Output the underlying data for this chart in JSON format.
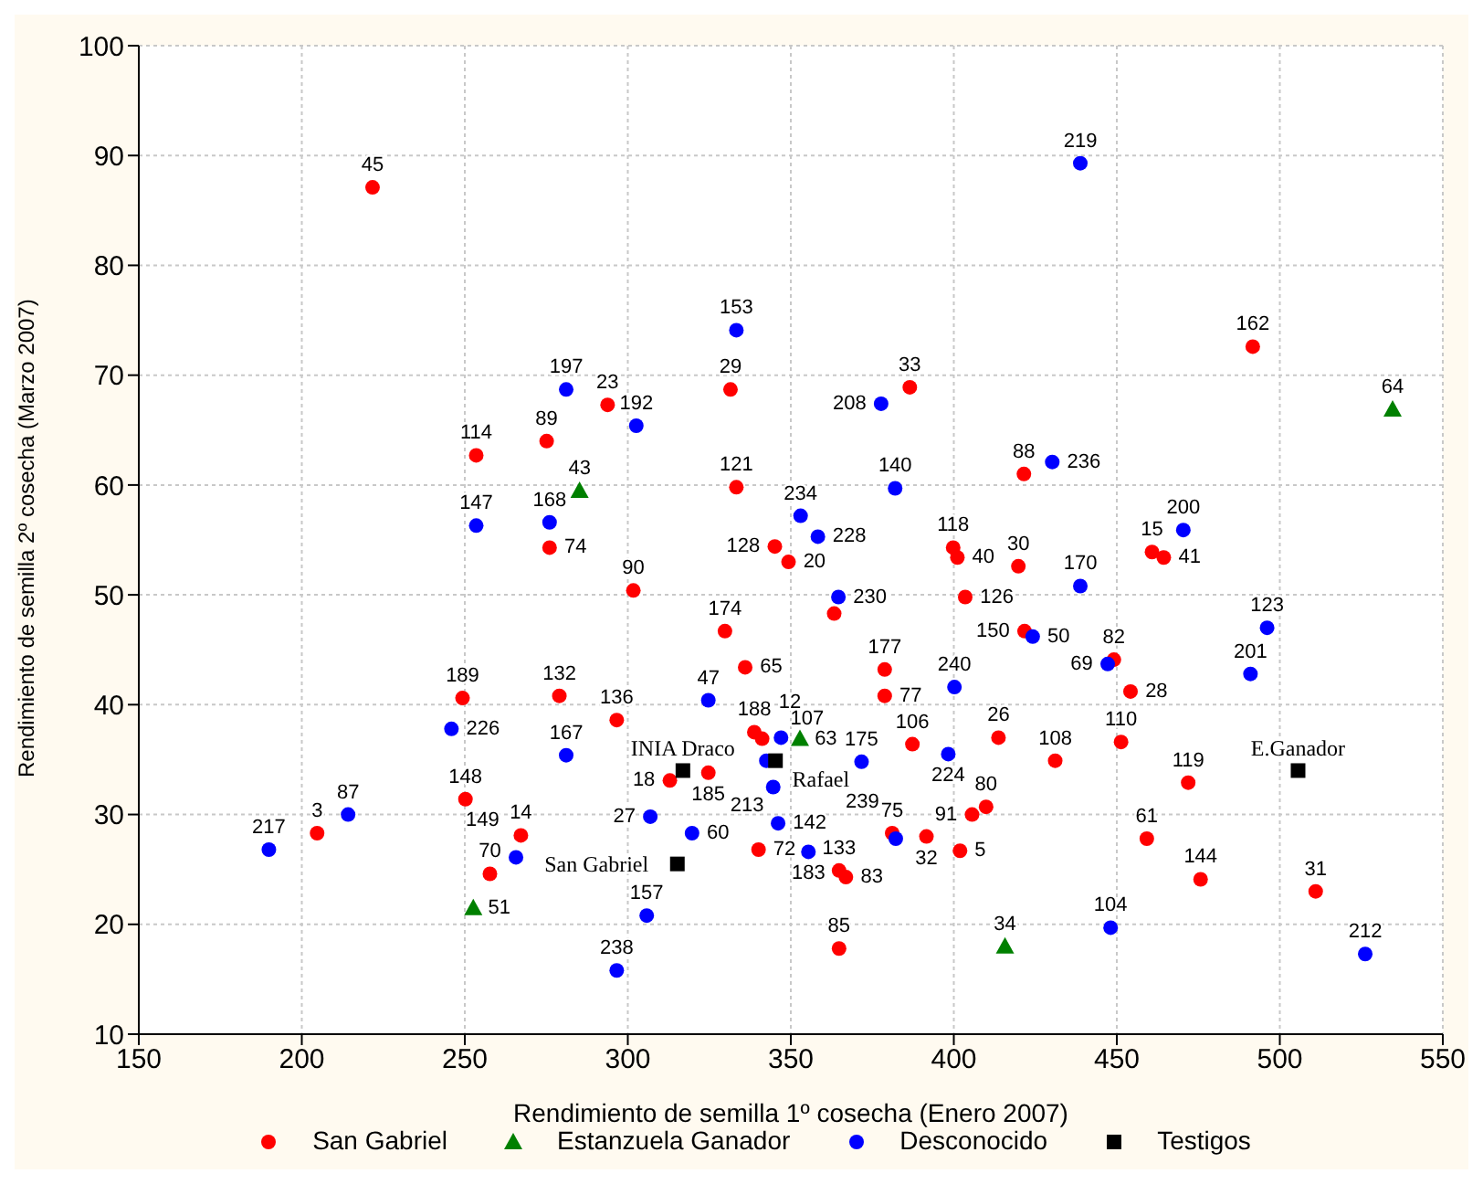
{
  "chart_data": {
    "type": "scatter",
    "xlabel": "Rendimiento de semilla 1º cosecha (Enero 2007)",
    "ylabel": "Rendimiento de semilla 2º cosecha (Marzo 2007)",
    "xlim": [
      150,
      550
    ],
    "xticks": [
      150,
      200,
      250,
      300,
      350,
      400,
      450,
      500,
      550
    ],
    "ylim": [
      10,
      100
    ],
    "yticks": [
      10,
      20,
      30,
      40,
      50,
      60,
      70,
      80,
      90,
      100
    ],
    "grid": true,
    "legend": "bottom",
    "series": [
      {
        "name": "San Gabriel",
        "color": "#ff0000",
        "marker": "circle",
        "x": [
          221.7,
          293.8,
          331.5,
          253.5,
          275.1,
          333.3,
          276,
          345.1,
          491.7,
          386.5,
          421.5,
          349.3,
          399.8,
          401.1,
          419.8,
          460.8,
          464.4,
          301.7,
          329.8,
          336,
          249.3,
          279,
          296.6,
          250.2,
          204.7,
          267.2,
          257.7,
          340.1,
          312.9,
          324.7,
          338.8,
          341.2,
          363.3,
          403.5,
          421.7,
          449.1,
          454.2,
          378.8,
          378.8,
          387.3,
          413.7,
          431.1,
          451.3,
          471.9,
          405.6,
          409.9,
          381.1,
          391.6,
          401.9,
          459.2,
          475.7,
          511,
          364.8,
          366.9,
          364.8
        ],
        "values": [
          87.1,
          67.3,
          68.7,
          62.7,
          64,
          59.8,
          54.3,
          54.4,
          72.6,
          68.9,
          61,
          53,
          54.3,
          53.4,
          52.6,
          53.9,
          53.4,
          50.4,
          46.7,
          43.4,
          40.6,
          40.8,
          38.6,
          31.4,
          28.3,
          28.1,
          24.6,
          26.8,
          33.1,
          33.8,
          37.5,
          36.9,
          48.3,
          49.8,
          46.7,
          44.1,
          41.2,
          43.2,
          40.8,
          36.4,
          37,
          34.9,
          36.6,
          32.9,
          30,
          30.7,
          28.3,
          28,
          26.7,
          27.8,
          24.1,
          23,
          24.9,
          24.3,
          17.8
        ]
      },
      {
        "name": "Estanzuela Ganador",
        "color": "#008000",
        "marker": "triangle",
        "x": [
          285.2,
          534.6,
          252.6,
          352.8,
          415.7
        ],
        "values": [
          59.5,
          66.9,
          21.5,
          36.9,
          18
        ]
      },
      {
        "name": "Desconocido",
        "color": "#0000ff",
        "marker": "circle",
        "x": [
          333.3,
          281.1,
          302.6,
          253.5,
          276,
          438.8,
          377.7,
          430.2,
          382,
          353,
          358.3,
          470.4,
          438.8,
          324.7,
          245.9,
          281.1,
          214.2,
          189.9,
          265.7,
          306.9,
          319.7,
          305.8,
          296.6,
          346.1,
          344.6,
          355.4,
          347,
          342.5,
          364.6,
          424.2,
          447.2,
          496.1,
          491,
          400.2,
          398.3,
          371.7,
          382.2,
          448.1,
          526.2
        ],
        "values": [
          74.1,
          68.7,
          65.4,
          56.3,
          56.6,
          89.3,
          67.4,
          62.1,
          59.7,
          57.2,
          55.3,
          55.9,
          50.8,
          40.4,
          37.8,
          35.4,
          30,
          26.8,
          26.1,
          29.8,
          28.3,
          20.8,
          15.8,
          29.2,
          32.5,
          26.6,
          37,
          34.9,
          49.8,
          46.2,
          43.7,
          47,
          42.8,
          41.6,
          35.5,
          34.8,
          27.8,
          19.7,
          17.3
        ]
      },
      {
        "name": "Testigos",
        "color": "#000000",
        "marker": "square",
        "x": [
          316.9,
          315.2,
          345.3,
          505.6
        ],
        "values": [
          34,
          25.5,
          34.9,
          34
        ]
      }
    ],
    "annotations": [
      {
        "text": "45",
        "x": 221.7,
        "y": 87.1
      },
      {
        "text": "23",
        "x": 293.8,
        "y": 67.3
      },
      {
        "text": "29",
        "x": 331.5,
        "y": 68.7
      },
      {
        "text": "114",
        "x": 253.5,
        "y": 62.7
      },
      {
        "text": "89",
        "x": 275.1,
        "y": 64
      },
      {
        "text": "121",
        "x": 333.3,
        "y": 59.8
      },
      {
        "text": "74",
        "x": 276,
        "y": 54.3
      },
      {
        "text": "128",
        "x": 345.1,
        "y": 54.4
      },
      {
        "text": "162",
        "x": 491.7,
        "y": 72.6
      },
      {
        "text": "33",
        "x": 386.5,
        "y": 68.9
      },
      {
        "text": "88",
        "x": 421.5,
        "y": 61
      },
      {
        "text": "20",
        "x": 349.3,
        "y": 53
      },
      {
        "text": "118",
        "x": 399.8,
        "y": 54.3
      },
      {
        "text": "40",
        "x": 401.1,
        "y": 53.4
      },
      {
        "text": "30",
        "x": 419.8,
        "y": 52.6
      },
      {
        "text": "15",
        "x": 460.8,
        "y": 53.9
      },
      {
        "text": "41",
        "x": 464.4,
        "y": 53.4
      },
      {
        "text": "90",
        "x": 301.7,
        "y": 50.4
      },
      {
        "text": "174",
        "x": 329.8,
        "y": 46.7
      },
      {
        "text": "65",
        "x": 336,
        "y": 43.4
      },
      {
        "text": "189",
        "x": 249.3,
        "y": 40.6
      },
      {
        "text": "132",
        "x": 279,
        "y": 40.8
      },
      {
        "text": "136",
        "x": 296.6,
        "y": 38.6
      },
      {
        "text": "148",
        "x": 250.2,
        "y": 31.4
      },
      {
        "text": "3",
        "x": 204.7,
        "y": 28.3
      },
      {
        "text": "14",
        "x": 267.2,
        "y": 28.1
      },
      {
        "text": "70",
        "x": 257.7,
        "y": 24.6
      },
      {
        "text": "72",
        "x": 340.1,
        "y": 26.8
      },
      {
        "text": "18",
        "x": 312.9,
        "y": 33.1
      },
      {
        "text": "185",
        "x": 324.7,
        "y": 33.8
      },
      {
        "text": "188",
        "x": 338.8,
        "y": 37.5
      },
      {
        "text": "12",
        "x": 341.2,
        "y": 36.9
      },
      {
        "text": "126",
        "x": 403.5,
        "y": 49.8
      },
      {
        "text": "150",
        "x": 421.7,
        "y": 46.7
      },
      {
        "text": "82",
        "x": 449.1,
        "y": 44.1
      },
      {
        "text": "28",
        "x": 454.2,
        "y": 41.2
      },
      {
        "text": "177",
        "x": 378.8,
        "y": 43.2
      },
      {
        "text": "77",
        "x": 378.8,
        "y": 40.8
      },
      {
        "text": "106",
        "x": 387.3,
        "y": 36.4
      },
      {
        "text": "26",
        "x": 413.7,
        "y": 37
      },
      {
        "text": "108",
        "x": 431.1,
        "y": 34.9
      },
      {
        "text": "110",
        "x": 451.3,
        "y": 36.6
      },
      {
        "text": "119",
        "x": 471.9,
        "y": 32.9
      },
      {
        "text": "91",
        "x": 405.6,
        "y": 30
      },
      {
        "text": "80",
        "x": 409.9,
        "y": 30.7
      },
      {
        "text": "75",
        "x": 381.1,
        "y": 28.3
      },
      {
        "text": "32",
        "x": 391.6,
        "y": 28
      },
      {
        "text": "5",
        "x": 401.9,
        "y": 26.7
      },
      {
        "text": "61",
        "x": 459.2,
        "y": 27.8
      },
      {
        "text": "144",
        "x": 475.7,
        "y": 24.1
      },
      {
        "text": "31",
        "x": 511,
        "y": 23
      },
      {
        "text": "133",
        "x": 364.8,
        "y": 24.9
      },
      {
        "text": "83",
        "x": 366.9,
        "y": 24.3
      },
      {
        "text": "85",
        "x": 364.8,
        "y": 17.8
      },
      {
        "text": "43",
        "x": 285.2,
        "y": 59.5
      },
      {
        "text": "64",
        "x": 534.6,
        "y": 66.9
      },
      {
        "text": "51",
        "x": 252.6,
        "y": 21.5
      },
      {
        "text": "63",
        "x": 352.8,
        "y": 36.9
      },
      {
        "text": "34",
        "x": 415.7,
        "y": 18
      },
      {
        "text": "153",
        "x": 333.3,
        "y": 74.1
      },
      {
        "text": "197",
        "x": 281.1,
        "y": 68.7
      },
      {
        "text": "192",
        "x": 302.6,
        "y": 65.4
      },
      {
        "text": "147",
        "x": 253.5,
        "y": 56.3
      },
      {
        "text": "168",
        "x": 276,
        "y": 56.6
      },
      {
        "text": "219",
        "x": 438.8,
        "y": 89.3
      },
      {
        "text": "208",
        "x": 377.7,
        "y": 67.4
      },
      {
        "text": "236",
        "x": 430.2,
        "y": 62.1
      },
      {
        "text": "140",
        "x": 382,
        "y": 59.7
      },
      {
        "text": "234",
        "x": 353,
        "y": 57.2
      },
      {
        "text": "228",
        "x": 358.3,
        "y": 55.3
      },
      {
        "text": "200",
        "x": 470.4,
        "y": 55.9
      },
      {
        "text": "170",
        "x": 438.8,
        "y": 50.8
      },
      {
        "text": "47",
        "x": 324.7,
        "y": 40.4
      },
      {
        "text": "226",
        "x": 245.9,
        "y": 37.8
      },
      {
        "text": "167",
        "x": 281.1,
        "y": 35.4
      },
      {
        "text": "87",
        "x": 214.2,
        "y": 30
      },
      {
        "text": "217",
        "x": 189.9,
        "y": 26.8
      },
      {
        "text": "149",
        "x": 265.7,
        "y": 26.1
      },
      {
        "text": "27",
        "x": 306.9,
        "y": 29.8
      },
      {
        "text": "60",
        "x": 319.7,
        "y": 28.3
      },
      {
        "text": "157",
        "x": 305.8,
        "y": 20.8
      },
      {
        "text": "238",
        "x": 296.6,
        "y": 15.8
      },
      {
        "text": "142",
        "x": 346.1,
        "y": 29.2
      },
      {
        "text": "213",
        "x": 344.6,
        "y": 32.5
      },
      {
        "text": "183",
        "x": 355.4,
        "y": 26.6
      },
      {
        "text": "107",
        "x": 347,
        "y": 37
      },
      {
        "text": "230",
        "x": 364.6,
        "y": 49.8
      },
      {
        "text": "50",
        "x": 424.2,
        "y": 46.2
      },
      {
        "text": "69",
        "x": 447.2,
        "y": 43.7
      },
      {
        "text": "123",
        "x": 496.1,
        "y": 47
      },
      {
        "text": "201",
        "x": 491,
        "y": 42.8
      },
      {
        "text": "240",
        "x": 400.2,
        "y": 41.6
      },
      {
        "text": "224",
        "x": 398.3,
        "y": 35.5
      },
      {
        "text": "175",
        "x": 371.7,
        "y": 34.8
      },
      {
        "text": "239",
        "x": 382.2,
        "y": 27.8
      },
      {
        "text": "104",
        "x": 448.1,
        "y": 19.7
      },
      {
        "text": "212",
        "x": 526.2,
        "y": 17.3
      },
      {
        "text": "INIA Draco",
        "x": 316.9,
        "y": 34
      },
      {
        "text": "San Gabriel",
        "x": 315.2,
        "y": 25.5
      },
      {
        "text": "Rafael",
        "x": 345.3,
        "y": 34.9
      },
      {
        "text": "E.Ganador",
        "x": 505.6,
        "y": 34
      }
    ]
  }
}
